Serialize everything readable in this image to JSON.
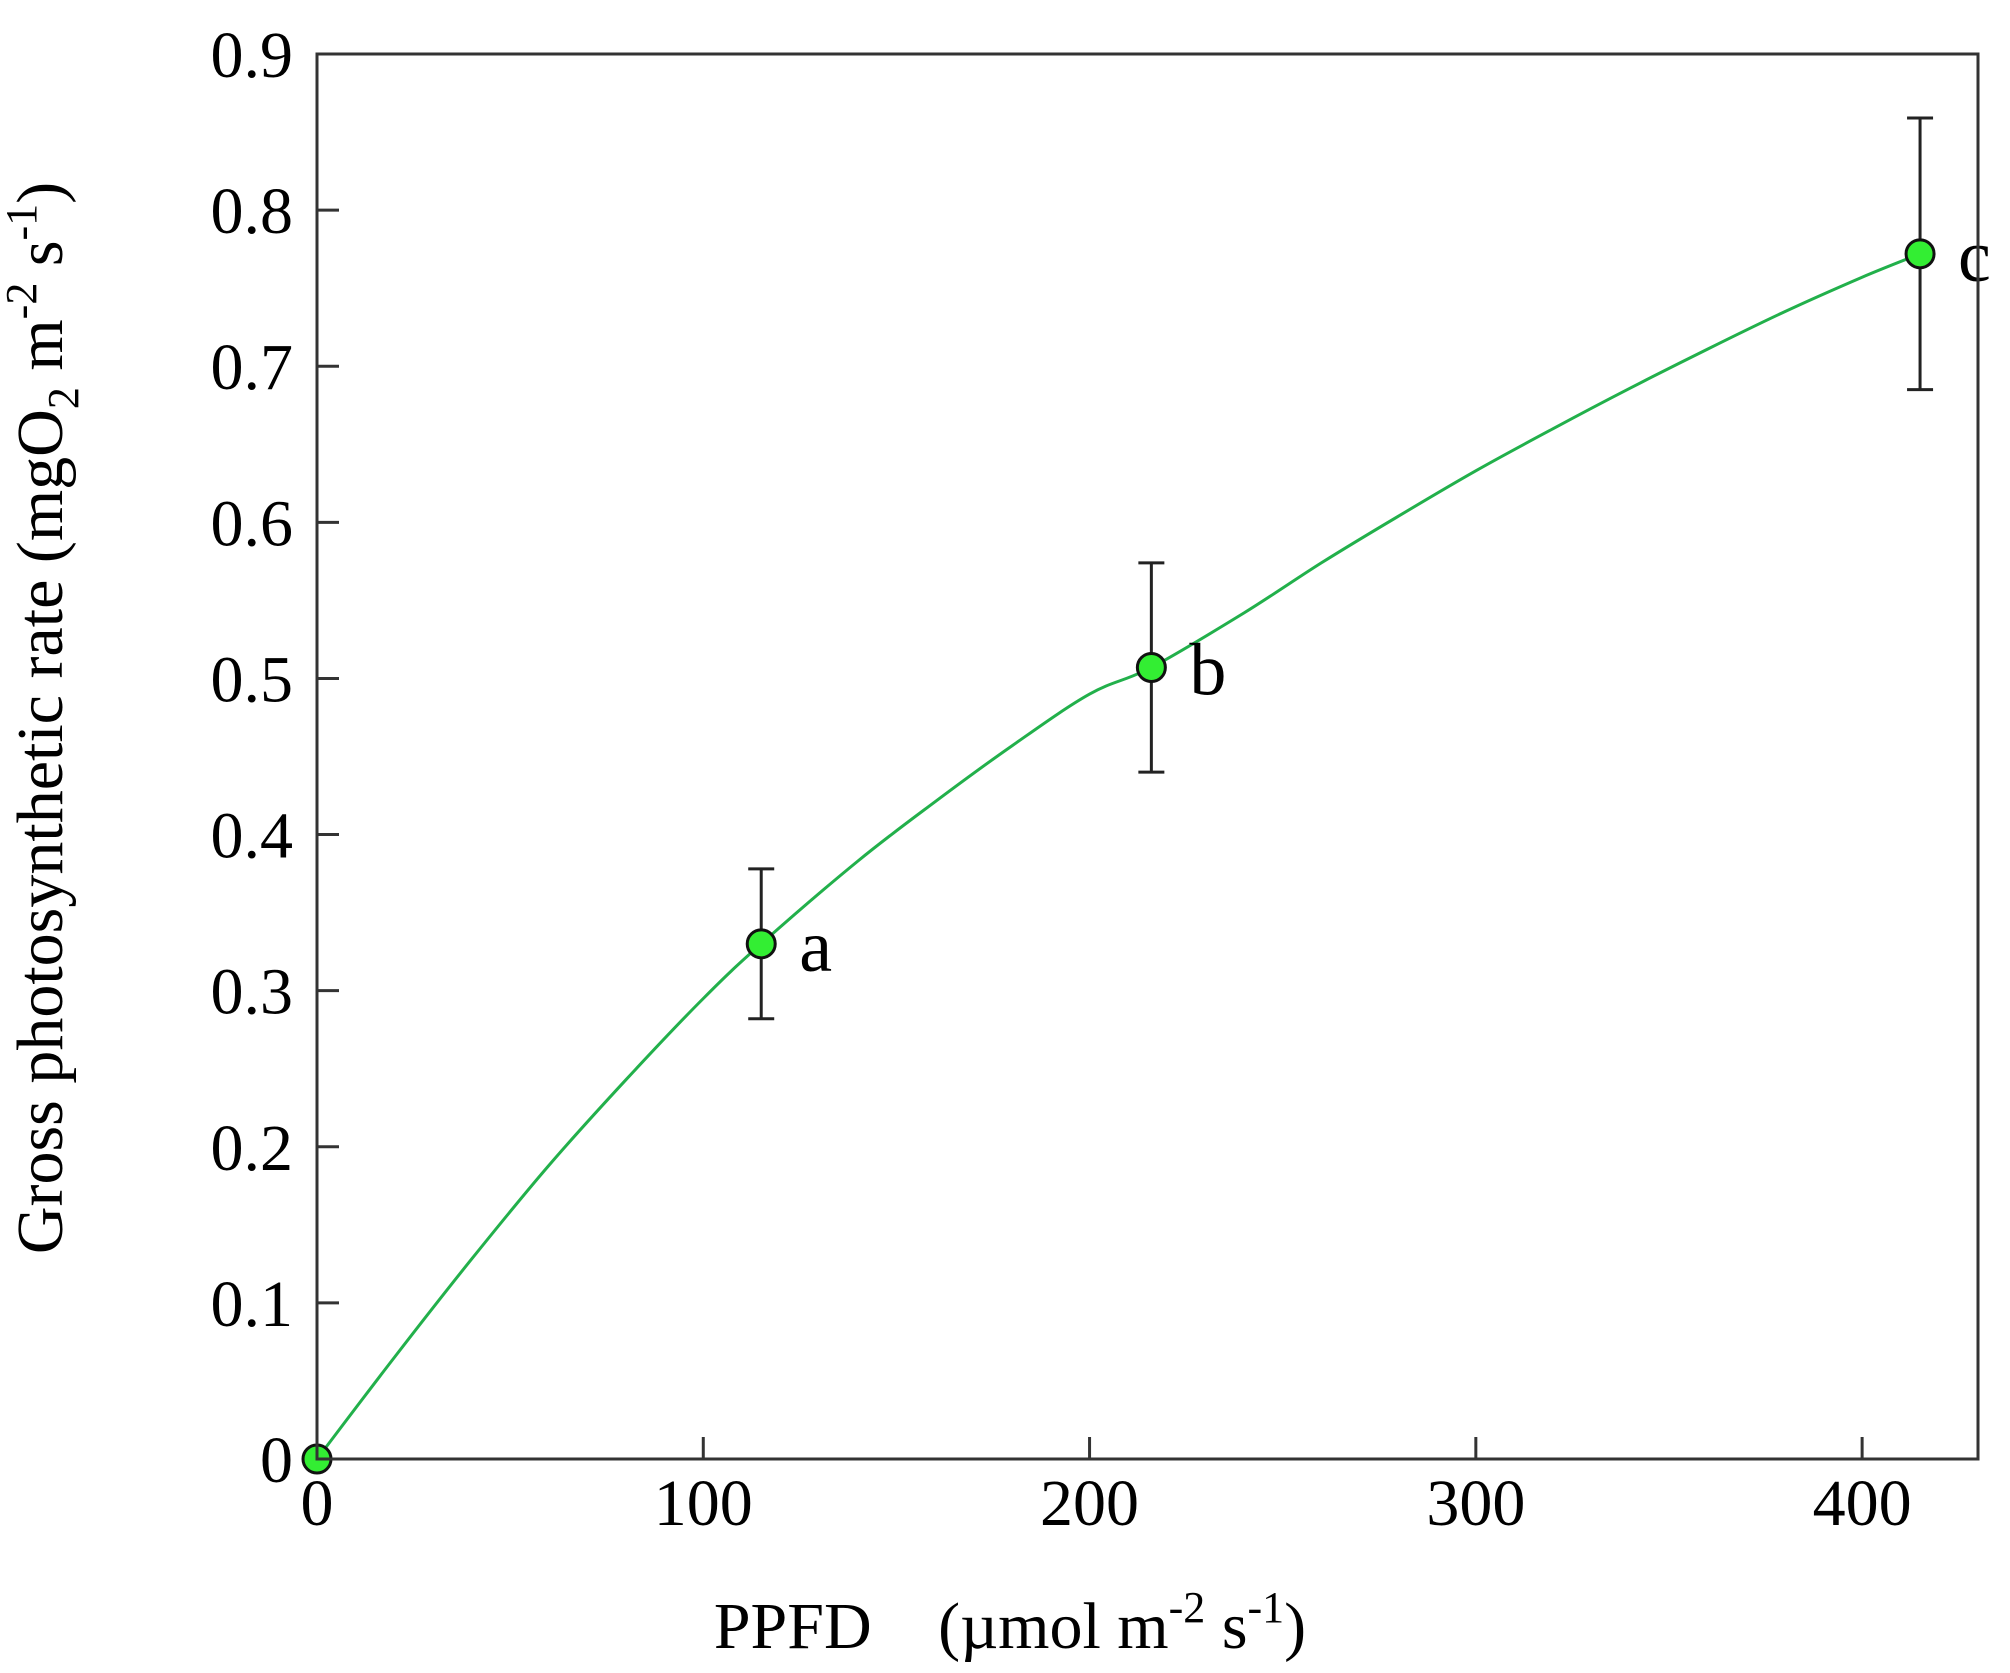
{
  "chart_data": {
    "type": "scatter",
    "xlabel": {
      "quantity": "PPFD",
      "unit_open": "(µmol m",
      "unit_exp1": "-2",
      "unit_mid": " s",
      "unit_exp2": "-1",
      "unit_close": ")"
    },
    "ylabel": {
      "prefix": "Gross photosynthetic rate (mgO",
      "sub": "2",
      "mid1": " m",
      "exp1": "-2",
      "mid2": " s",
      "exp2": "-1",
      "suffix": ")"
    },
    "xlim": [
      0,
      430
    ],
    "ylim": [
      0,
      0.9
    ],
    "xticks": [
      0,
      100,
      200,
      300,
      400
    ],
    "yticks": [
      0,
      0.1,
      0.2,
      0.3,
      0.4,
      0.5,
      0.6,
      0.7,
      0.8,
      0.9
    ],
    "points": [
      {
        "x": 0,
        "y": 0.0,
        "err": 0,
        "label": ""
      },
      {
        "x": 115,
        "y": 0.33,
        "err": 0.048,
        "label": "a"
      },
      {
        "x": 216,
        "y": 0.507,
        "err": 0.067,
        "label": "b"
      },
      {
        "x": 415,
        "y": 0.772,
        "err": 0.087,
        "label": "c"
      }
    ],
    "fit_curve": {
      "description": "saturating fit",
      "x": [
        0,
        20,
        40,
        60,
        80,
        100,
        115,
        140,
        160,
        180,
        200,
        216,
        240,
        260,
        280,
        300,
        320,
        340,
        360,
        380,
        400,
        415
      ],
      "y": [
        0,
        0.065,
        0.128,
        0.188,
        0.243,
        0.295,
        0.33,
        0.383,
        0.421,
        0.457,
        0.49,
        0.507,
        0.542,
        0.574,
        0.604,
        0.633,
        0.66,
        0.686,
        0.711,
        0.735,
        0.757,
        0.772
      ]
    },
    "colors": {
      "marker_fill": "#33ee33",
      "marker_edge": "#111111",
      "curve": "#22b04b",
      "error_bar": "#222222",
      "axis": "#333333"
    },
    "grid": false,
    "legend": "none"
  }
}
